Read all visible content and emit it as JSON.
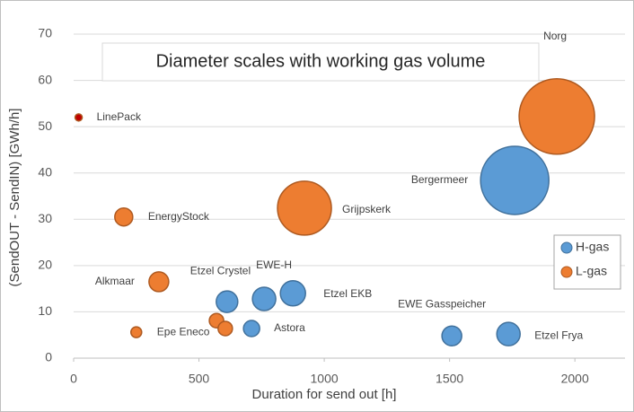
{
  "chart_data": {
    "type": "scatter",
    "title": "Diameter scales with working gas volume",
    "x_label": "Duration for send out  [h]",
    "y_label": "(SendOUT - SendIN)  [GWh/h]",
    "xlim": [
      0,
      2200
    ],
    "xticks": [
      0,
      500,
      1000,
      1500,
      2000
    ],
    "ylim": [
      0,
      70
    ],
    "yticks": [
      0,
      10,
      20,
      30,
      40,
      50,
      60,
      70
    ],
    "grid": true,
    "legend": "right",
    "series": [
      {
        "name": "H-gas",
        "color": "#5b9bd5",
        "labels": [
          "Etzel Crystel",
          "EWE-H",
          "Etzel EKB",
          "Astora",
          "Bergermeer",
          "EWE Gasspeicher",
          "Etzel Frya"
        ],
        "x": [
          612,
          760,
          875,
          710,
          1760,
          1509,
          1735
        ],
        "values": [
          12.2,
          12.8,
          14,
          6.4,
          38.4,
          4.8,
          5.2
        ],
        "sizes": [
          12,
          13,
          14,
          9,
          38,
          11,
          13
        ]
      },
      {
        "name": "L-gas",
        "color": "#ed7d31",
        "labels": [
          "LinePack",
          "EnergyStock",
          "Alkmaar",
          "Epe Eneco",
          null,
          null,
          "Grijpskerk",
          "Norg"
        ],
        "point_colors": [
          "#c00000",
          null,
          null,
          null,
          null,
          null,
          null,
          null
        ],
        "x": [
          20,
          200,
          340,
          250,
          570,
          605,
          921,
          1928
        ],
        "values": [
          52,
          30.5,
          16.5,
          5.6,
          8.1,
          6.4,
          32.4,
          52.2
        ],
        "sizes": [
          4,
          10,
          11,
          6,
          8,
          8,
          30,
          42
        ]
      }
    ]
  }
}
